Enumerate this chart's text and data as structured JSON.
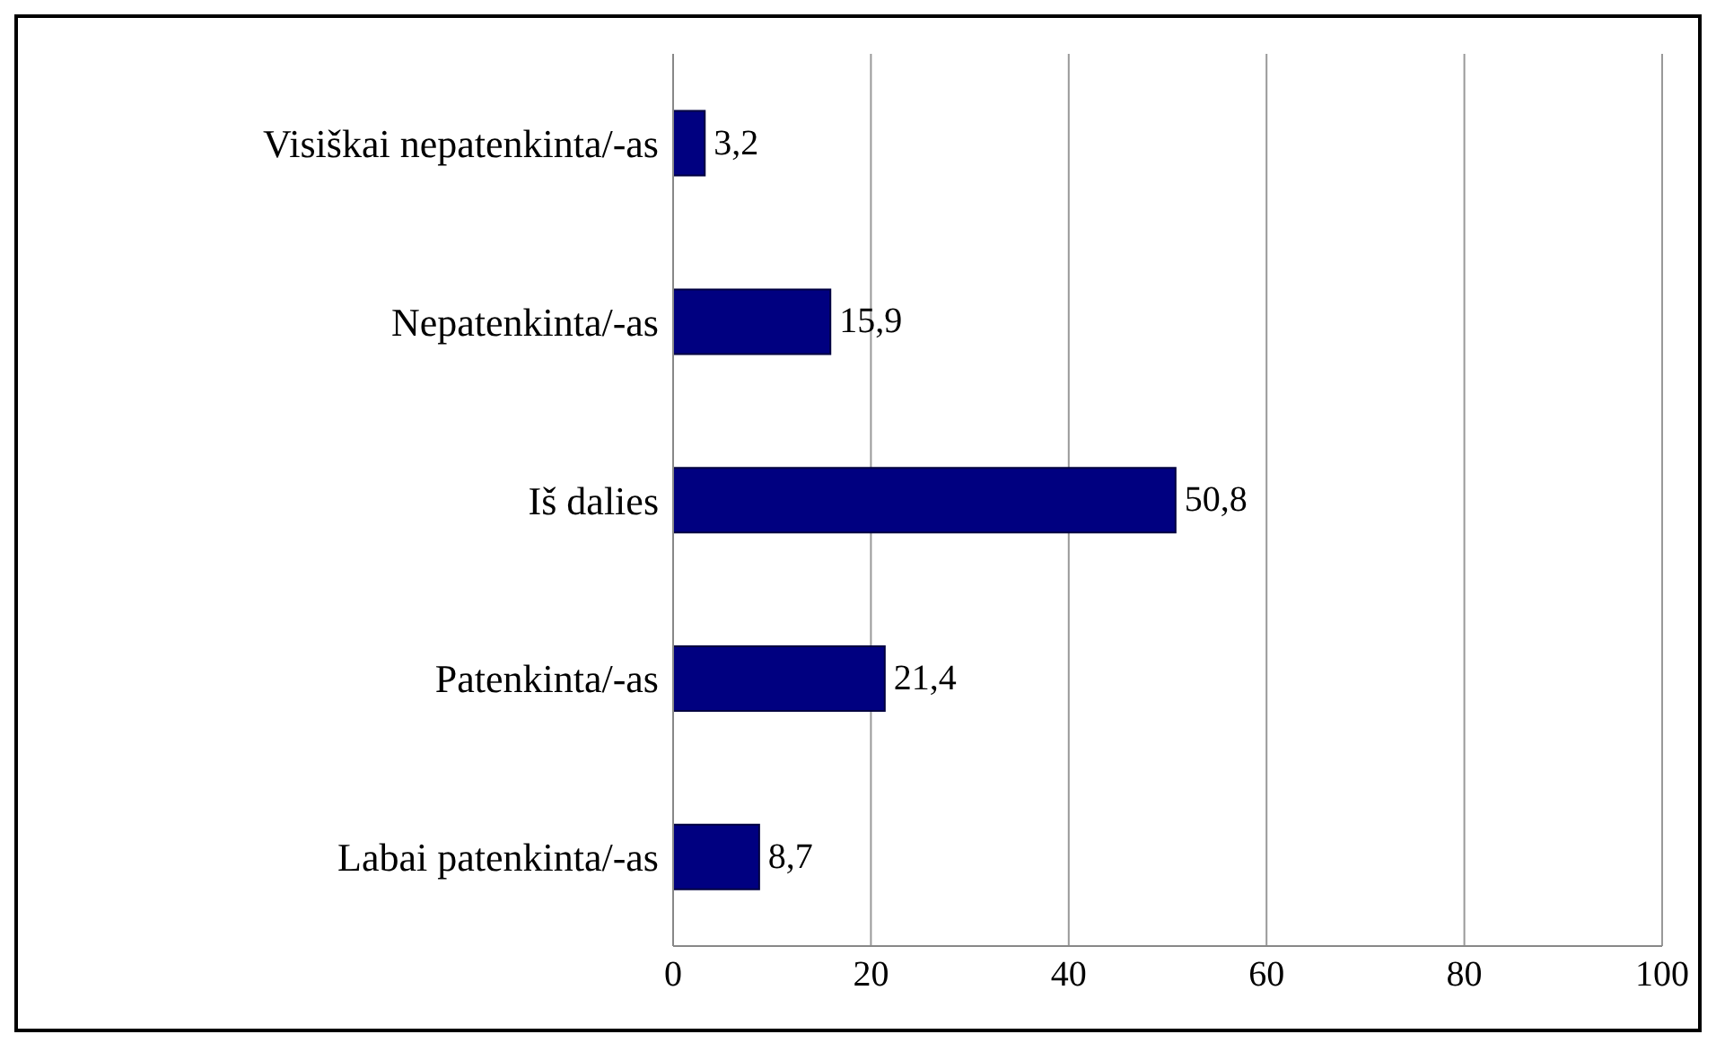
{
  "chart_data": {
    "type": "bar",
    "orientation": "horizontal",
    "categories": [
      "Visiškai nepatenkinta/-as",
      "Nepatenkinta/-as",
      "Iš dalies",
      "Patenkinta/-as",
      "Labai patenkinta/-as"
    ],
    "values": [
      3.2,
      15.9,
      50.8,
      21.4,
      8.7
    ],
    "value_labels": [
      "3,2",
      "15,9",
      "50,8",
      "21,4",
      "8,7"
    ],
    "color": "#000080",
    "xlim": [
      0,
      100
    ],
    "xticks": [
      0,
      20,
      40,
      60,
      80,
      100
    ],
    "grid": "x"
  }
}
